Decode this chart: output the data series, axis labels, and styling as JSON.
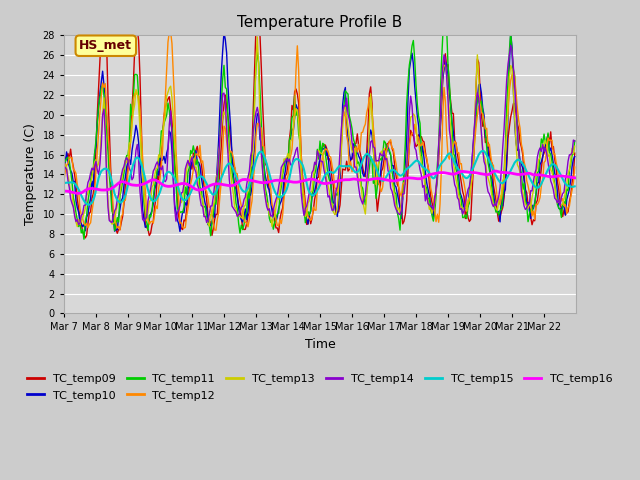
{
  "title": "Temperature Profile B",
  "xlabel": "Time",
  "ylabel": "Temperature (C)",
  "ylim": [
    0,
    28
  ],
  "yticks": [
    0,
    2,
    4,
    6,
    8,
    10,
    12,
    14,
    16,
    18,
    20,
    22,
    24,
    26,
    28
  ],
  "date_labels": [
    "Mar 7",
    "Mar 8",
    "Mar 9",
    "Mar 10",
    "Mar 11",
    "Mar 12",
    "Mar 13",
    "Mar 14",
    "Mar 15",
    "Mar 16",
    "Mar 17",
    "Mar 18",
    "Mar 19",
    "Mar 20",
    "Mar 21",
    "Mar 22"
  ],
  "bg_color": "#cccccc",
  "plot_bg_color": "#d8d8d8",
  "grid_color": "#ffffff",
  "series_colors": {
    "TC_temp09": "#cc0000",
    "TC_temp10": "#0000cc",
    "TC_temp11": "#00cc00",
    "TC_temp12": "#ff8800",
    "TC_temp13": "#cccc00",
    "TC_temp14": "#8800cc",
    "TC_temp15": "#00cccc",
    "TC_temp16": "#ff00ff"
  },
  "legend_label": "HS_met",
  "legend_bg": "#ffff99",
  "legend_border": "#cc8800"
}
